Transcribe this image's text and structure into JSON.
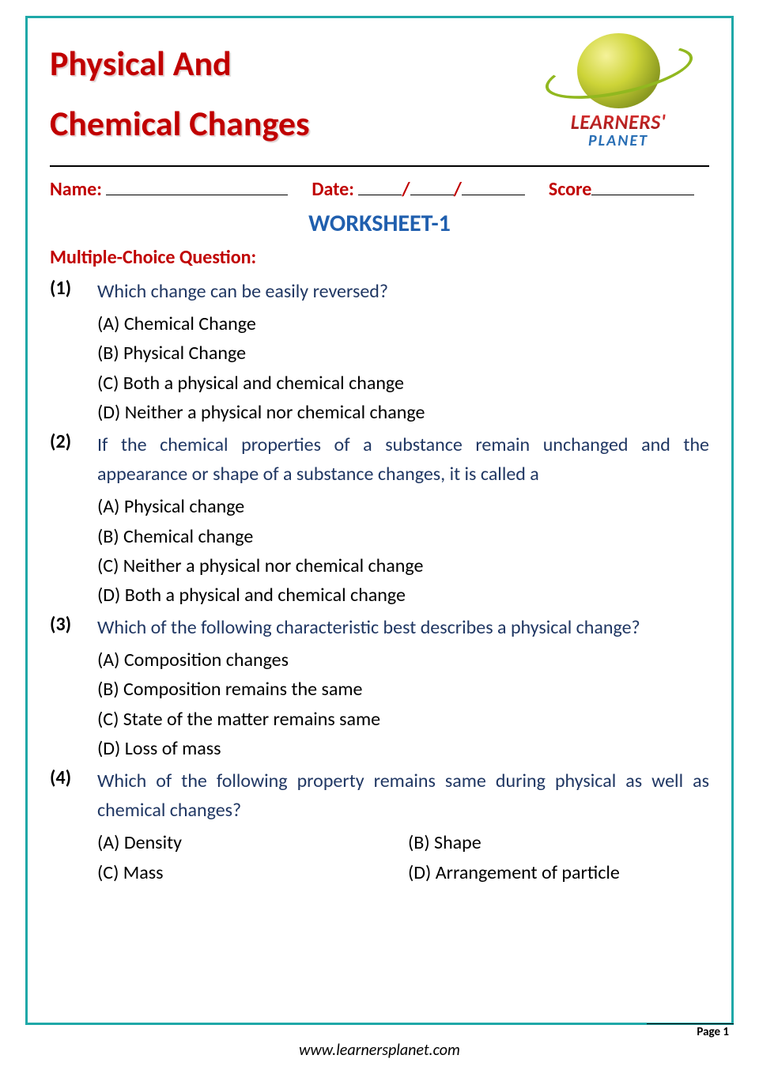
{
  "colors": {
    "border": "#1fa8a8",
    "title": "#c00000",
    "heading_blue": "#205fae",
    "question_blue": "#203763",
    "body_text": "#000000",
    "background": "#ffffff"
  },
  "typography": {
    "title_fontsize": 44,
    "body_fontsize": 24,
    "heading_fontsize": 30,
    "footer_fontsize": 20
  },
  "title": {
    "line1": "Physical And",
    "line2": "Chemical Changes"
  },
  "logo": {
    "text1": "LEARNERS'",
    "text2": "PLANET"
  },
  "fields": {
    "name_label": "Name:",
    "date_label": "Date:",
    "score_label": "Score"
  },
  "worksheet_heading": "WORKSHEET-1",
  "section_heading": "Multiple-Choice Question:",
  "questions": [
    {
      "num": "(1)",
      "text": "Which change can be easily reversed?",
      "justify": false,
      "layout": "single",
      "options": [
        "(A) Chemical Change",
        "(B) Physical Change",
        "(C) Both a physical and chemical change",
        "(D) Neither a physical nor chemical change"
      ]
    },
    {
      "num": "(2)",
      "text": "If the chemical properties of a substance remain unchanged and the appearance or shape of a substance changes, it is called a",
      "justify": true,
      "layout": "single",
      "options": [
        "(A) Physical change",
        "(B) Chemical change",
        "(C) Neither a physical nor chemical change",
        "(D) Both a physical and chemical change"
      ]
    },
    {
      "num": "(3)",
      "text": "Which of the following characteristic best describes a physical change?",
      "justify": false,
      "layout": "single",
      "options": [
        "(A) Composition changes",
        "(B) Composition remains the same",
        "(C) State of the matter remains same",
        "(D) Loss of mass"
      ]
    },
    {
      "num": "(4)",
      "text": "Which of the following property remains same during physical as well as chemical changes?",
      "justify": true,
      "layout": "grid",
      "options": [
        "(A) Density",
        "(B) Shape",
        "(C) Mass",
        "(D) Arrangement of particle"
      ]
    }
  ],
  "footer": {
    "page_label": "Page 1",
    "url": "www.learnersplanet.com"
  }
}
